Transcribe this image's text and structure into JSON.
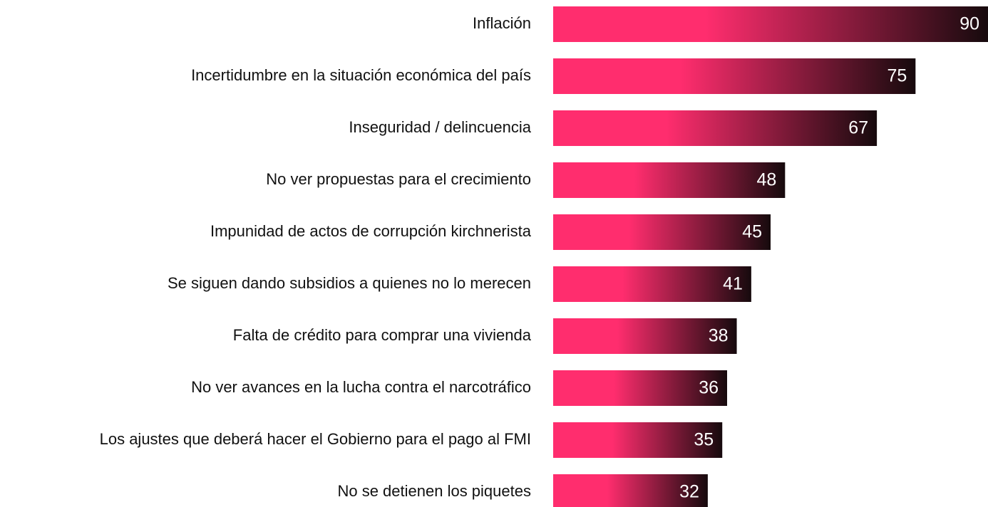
{
  "chart_data": {
    "type": "bar",
    "orientation": "horizontal",
    "categories": [
      "Inflación",
      "Incertidumbre en la situación económica del país",
      "Inseguridad / delincuencia",
      "No ver propuestas para el crecimiento ",
      "Impunidad de actos de corrupción kirchnerista",
      "Se siguen dando subsidios a quienes no lo merecen",
      "Falta de crédito para comprar una vivienda",
      "No ver avances en la lucha contra el narcotráfico",
      "Los ajustes que deberá hacer el Gobierno para el pago al FMI",
      "No se detienen los piquetes"
    ],
    "values": [
      90,
      75,
      67,
      48,
      45,
      41,
      38,
      36,
      35,
      32
    ],
    "color": [
      "#ff2d6e",
      "#160a0d"
    ]
  }
}
